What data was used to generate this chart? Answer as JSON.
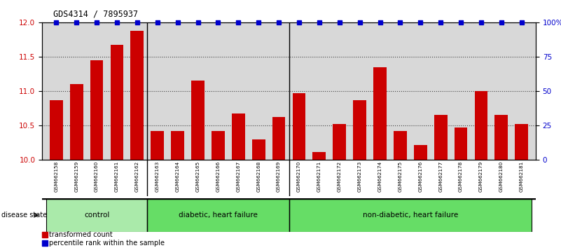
{
  "title": "GDS4314 / 7895937",
  "samples": [
    "GSM662158",
    "GSM662159",
    "GSM662160",
    "GSM662161",
    "GSM662162",
    "GSM662163",
    "GSM662164",
    "GSM662165",
    "GSM662166",
    "GSM662167",
    "GSM662168",
    "GSM662169",
    "GSM662170",
    "GSM662171",
    "GSM662172",
    "GSM662173",
    "GSM662174",
    "GSM662175",
    "GSM662176",
    "GSM662177",
    "GSM662178",
    "GSM662179",
    "GSM662180",
    "GSM662181"
  ],
  "bar_values": [
    10.87,
    11.1,
    11.45,
    11.67,
    11.88,
    10.42,
    10.42,
    11.15,
    10.42,
    10.68,
    10.3,
    10.62,
    10.97,
    10.12,
    10.52,
    10.87,
    11.35,
    10.42,
    10.22,
    10.65,
    10.47,
    11.0,
    10.65,
    10.52
  ],
  "bar_color": "#cc0000",
  "percentile_color": "#0000cc",
  "ylim_left": [
    10,
    12
  ],
  "ylim_right": [
    0,
    100
  ],
  "yticks_left": [
    10,
    10.5,
    11,
    11.5,
    12
  ],
  "yticks_right": [
    0,
    25,
    50,
    75,
    100
  ],
  "ytick_labels_right": [
    "0",
    "25",
    "50",
    "75",
    "100%"
  ],
  "groups": [
    {
      "label": "control",
      "start": 0,
      "end": 5
    },
    {
      "label": "diabetic, heart failure",
      "start": 5,
      "end": 12
    },
    {
      "label": "non-diabetic, heart failure",
      "start": 12,
      "end": 24
    }
  ],
  "group_separators": [
    5,
    12
  ],
  "group_colors": [
    "#b0f0b0",
    "#66dd66",
    "#66dd66"
  ],
  "legend_bar_label": "transformed count",
  "legend_pct_label": "percentile rank within the sample",
  "disease_state_label": "disease state",
  "background_color": "#ffffff",
  "plot_bg_color": "#d8d8d8",
  "xtick_bg_color": "#d8d8d8",
  "dotted_grid_color": "#444444"
}
